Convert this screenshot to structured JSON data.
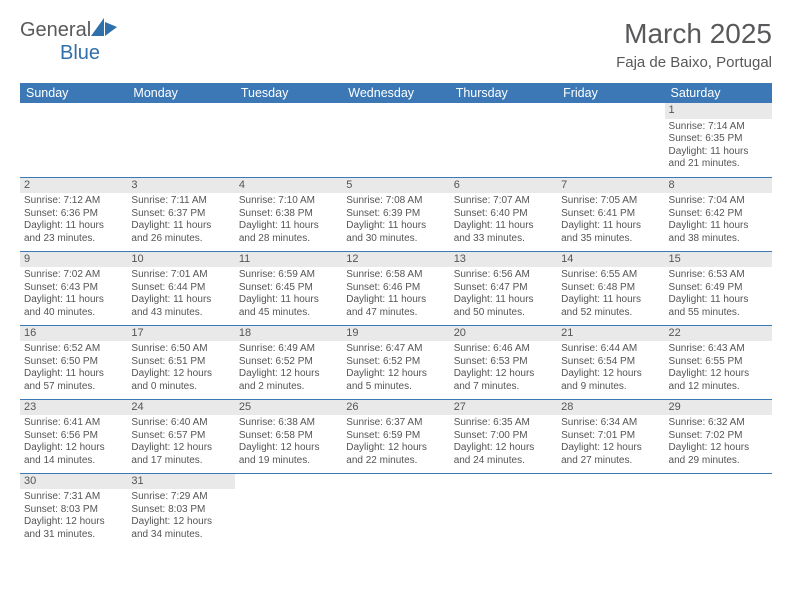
{
  "logo": {
    "general": "General",
    "blue": "Blue"
  },
  "title": "March 2025",
  "subtitle": "Faja de Baixo, Portugal",
  "colors": {
    "header_bg": "#3b78b5",
    "header_text": "#ffffff",
    "border": "#3b78b5",
    "daynum_bg": "#e9e9e9",
    "text": "#555555",
    "logo_gray": "#58595b",
    "logo_blue": "#2f6fab"
  },
  "weekdays": [
    "Sunday",
    "Monday",
    "Tuesday",
    "Wednesday",
    "Thursday",
    "Friday",
    "Saturday"
  ],
  "days": {
    "1": {
      "sunrise": "Sunrise: 7:14 AM",
      "sunset": "Sunset: 6:35 PM",
      "daylight1": "Daylight: 11 hours",
      "daylight2": "and 21 minutes."
    },
    "2": {
      "sunrise": "Sunrise: 7:12 AM",
      "sunset": "Sunset: 6:36 PM",
      "daylight1": "Daylight: 11 hours",
      "daylight2": "and 23 minutes."
    },
    "3": {
      "sunrise": "Sunrise: 7:11 AM",
      "sunset": "Sunset: 6:37 PM",
      "daylight1": "Daylight: 11 hours",
      "daylight2": "and 26 minutes."
    },
    "4": {
      "sunrise": "Sunrise: 7:10 AM",
      "sunset": "Sunset: 6:38 PM",
      "daylight1": "Daylight: 11 hours",
      "daylight2": "and 28 minutes."
    },
    "5": {
      "sunrise": "Sunrise: 7:08 AM",
      "sunset": "Sunset: 6:39 PM",
      "daylight1": "Daylight: 11 hours",
      "daylight2": "and 30 minutes."
    },
    "6": {
      "sunrise": "Sunrise: 7:07 AM",
      "sunset": "Sunset: 6:40 PM",
      "daylight1": "Daylight: 11 hours",
      "daylight2": "and 33 minutes."
    },
    "7": {
      "sunrise": "Sunrise: 7:05 AM",
      "sunset": "Sunset: 6:41 PM",
      "daylight1": "Daylight: 11 hours",
      "daylight2": "and 35 minutes."
    },
    "8": {
      "sunrise": "Sunrise: 7:04 AM",
      "sunset": "Sunset: 6:42 PM",
      "daylight1": "Daylight: 11 hours",
      "daylight2": "and 38 minutes."
    },
    "9": {
      "sunrise": "Sunrise: 7:02 AM",
      "sunset": "Sunset: 6:43 PM",
      "daylight1": "Daylight: 11 hours",
      "daylight2": "and 40 minutes."
    },
    "10": {
      "sunrise": "Sunrise: 7:01 AM",
      "sunset": "Sunset: 6:44 PM",
      "daylight1": "Daylight: 11 hours",
      "daylight2": "and 43 minutes."
    },
    "11": {
      "sunrise": "Sunrise: 6:59 AM",
      "sunset": "Sunset: 6:45 PM",
      "daylight1": "Daylight: 11 hours",
      "daylight2": "and 45 minutes."
    },
    "12": {
      "sunrise": "Sunrise: 6:58 AM",
      "sunset": "Sunset: 6:46 PM",
      "daylight1": "Daylight: 11 hours",
      "daylight2": "and 47 minutes."
    },
    "13": {
      "sunrise": "Sunrise: 6:56 AM",
      "sunset": "Sunset: 6:47 PM",
      "daylight1": "Daylight: 11 hours",
      "daylight2": "and 50 minutes."
    },
    "14": {
      "sunrise": "Sunrise: 6:55 AM",
      "sunset": "Sunset: 6:48 PM",
      "daylight1": "Daylight: 11 hours",
      "daylight2": "and 52 minutes."
    },
    "15": {
      "sunrise": "Sunrise: 6:53 AM",
      "sunset": "Sunset: 6:49 PM",
      "daylight1": "Daylight: 11 hours",
      "daylight2": "and 55 minutes."
    },
    "16": {
      "sunrise": "Sunrise: 6:52 AM",
      "sunset": "Sunset: 6:50 PM",
      "daylight1": "Daylight: 11 hours",
      "daylight2": "and 57 minutes."
    },
    "17": {
      "sunrise": "Sunrise: 6:50 AM",
      "sunset": "Sunset: 6:51 PM",
      "daylight1": "Daylight: 12 hours",
      "daylight2": "and 0 minutes."
    },
    "18": {
      "sunrise": "Sunrise: 6:49 AM",
      "sunset": "Sunset: 6:52 PM",
      "daylight1": "Daylight: 12 hours",
      "daylight2": "and 2 minutes."
    },
    "19": {
      "sunrise": "Sunrise: 6:47 AM",
      "sunset": "Sunset: 6:52 PM",
      "daylight1": "Daylight: 12 hours",
      "daylight2": "and 5 minutes."
    },
    "20": {
      "sunrise": "Sunrise: 6:46 AM",
      "sunset": "Sunset: 6:53 PM",
      "daylight1": "Daylight: 12 hours",
      "daylight2": "and 7 minutes."
    },
    "21": {
      "sunrise": "Sunrise: 6:44 AM",
      "sunset": "Sunset: 6:54 PM",
      "daylight1": "Daylight: 12 hours",
      "daylight2": "and 9 minutes."
    },
    "22": {
      "sunrise": "Sunrise: 6:43 AM",
      "sunset": "Sunset: 6:55 PM",
      "daylight1": "Daylight: 12 hours",
      "daylight2": "and 12 minutes."
    },
    "23": {
      "sunrise": "Sunrise: 6:41 AM",
      "sunset": "Sunset: 6:56 PM",
      "daylight1": "Daylight: 12 hours",
      "daylight2": "and 14 minutes."
    },
    "24": {
      "sunrise": "Sunrise: 6:40 AM",
      "sunset": "Sunset: 6:57 PM",
      "daylight1": "Daylight: 12 hours",
      "daylight2": "and 17 minutes."
    },
    "25": {
      "sunrise": "Sunrise: 6:38 AM",
      "sunset": "Sunset: 6:58 PM",
      "daylight1": "Daylight: 12 hours",
      "daylight2": "and 19 minutes."
    },
    "26": {
      "sunrise": "Sunrise: 6:37 AM",
      "sunset": "Sunset: 6:59 PM",
      "daylight1": "Daylight: 12 hours",
      "daylight2": "and 22 minutes."
    },
    "27": {
      "sunrise": "Sunrise: 6:35 AM",
      "sunset": "Sunset: 7:00 PM",
      "daylight1": "Daylight: 12 hours",
      "daylight2": "and 24 minutes."
    },
    "28": {
      "sunrise": "Sunrise: 6:34 AM",
      "sunset": "Sunset: 7:01 PM",
      "daylight1": "Daylight: 12 hours",
      "daylight2": "and 27 minutes."
    },
    "29": {
      "sunrise": "Sunrise: 6:32 AM",
      "sunset": "Sunset: 7:02 PM",
      "daylight1": "Daylight: 12 hours",
      "daylight2": "and 29 minutes."
    },
    "30": {
      "sunrise": "Sunrise: 7:31 AM",
      "sunset": "Sunset: 8:03 PM",
      "daylight1": "Daylight: 12 hours",
      "daylight2": "and 31 minutes."
    },
    "31": {
      "sunrise": "Sunrise: 7:29 AM",
      "sunset": "Sunset: 8:03 PM",
      "daylight1": "Daylight: 12 hours",
      "daylight2": "and 34 minutes."
    }
  },
  "grid": [
    [
      null,
      null,
      null,
      null,
      null,
      null,
      "1"
    ],
    [
      "2",
      "3",
      "4",
      "5",
      "6",
      "7",
      "8"
    ],
    [
      "9",
      "10",
      "11",
      "12",
      "13",
      "14",
      "15"
    ],
    [
      "16",
      "17",
      "18",
      "19",
      "20",
      "21",
      "22"
    ],
    [
      "23",
      "24",
      "25",
      "26",
      "27",
      "28",
      "29"
    ],
    [
      "30",
      "31",
      null,
      null,
      null,
      null,
      null
    ]
  ]
}
